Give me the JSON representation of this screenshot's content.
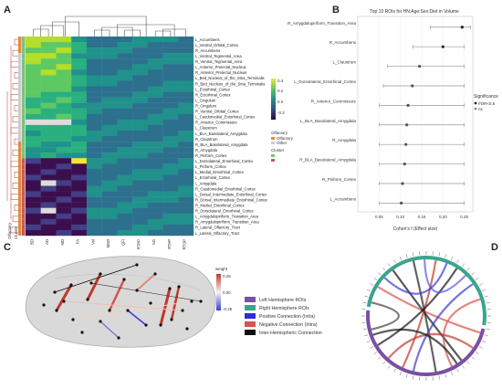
{
  "panels": {
    "a": "A",
    "b": "B",
    "c": "C",
    "d": "D"
  },
  "heatmap": {
    "rows": [
      "L_Accumbens",
      "L_Ventral_Orbital_Cortex",
      "R_Accumbens",
      "L_Ventral_Tegmental_Area",
      "R_Ventral_Tegmental_Area",
      "L_Anterior_Pretectal_Nucleus",
      "R_Anterior_Pretectal_Nucleus",
      "L_Bed_Nucleus_of_the_Stria_Terminalis",
      "R_Bed_Nucleus_of_the_Stria_Terminalis",
      "L_Ectorhinal_Cortex",
      "R_Ectorhinal_Cortex",
      "L_Cingulum",
      "R_Cingulum",
      "R_Ventral_Orbital_Cortex",
      "L_Caudomedial_Entorhinal_Cortex",
      "R_Anterior_Commissure",
      "L_Claustrum",
      "L_BLA_Basolateral_Amygdala",
      "R_Claustrum",
      "R_BLA_Basolateral_Amygdala",
      "R_Amygdala",
      "R_Piriform_Cortex",
      "L_Dorsolateral_Entorhinal_Cortex",
      "L_Piriform_Cortex",
      "L_Medial_Entorhinal_Cortex",
      "L_Ectorhinal_Cortex",
      "L_Amygdala",
      "R_Caudomedial_Entorhinal_Cortex",
      "L_Dorsal_Intermediate_Entorhinal_Cortex",
      "R_Dorsal_Intermediate_Entorhinal_Cortex",
      "R_Medial_Entorhinal_Cortex",
      "R_Dorsolateral_Entorhinal_Cortex",
      "L_Amygdalopiriform_Transition_Area",
      "R_Amygdalopiriform_Transition_Area",
      "R_Lateral_Olfactory_Tract",
      "L_Lateral_Olfactory_Tract"
    ],
    "cols": [
      "BD",
      "AD",
      "MD",
      "FA",
      "Vol",
      "MSD",
      "QFI",
      "RTPP",
      "NG",
      "RTAP",
      "RTOP"
    ],
    "side_labels": [
      "Olfactory",
      "Cluster"
    ],
    "colorbar_ticks": [
      "0.4",
      "0.2",
      "0.0",
      "-0.2"
    ],
    "legend1_title": "Olfactory",
    "legend1_items": [
      "Olfactory",
      "Other"
    ],
    "legend2_title": "Cluster"
  },
  "forest": {
    "title": "Top 10 ROIs for HN:Age:Sex:Diet in Volume",
    "xlabel": "Cohen's f (Effect size)",
    "legend_title": "Significance",
    "legend_items": [
      "FDR<0.5",
      "ns"
    ]
  },
  "brain": {
    "legend_title": "weight",
    "colorbar_ticks": [
      "0.25",
      "0.00",
      "-0.25"
    ],
    "legend_items": [
      {
        "label": "Left Hemisphere ROIs",
        "color": "#7b4fa3"
      },
      {
        "label": "Right Hemisphere ROIs",
        "color": "#3aa58c"
      },
      {
        "label": "Positive Connection (Intra)",
        "color": "#2c2cd8"
      },
      {
        "label": "Negative Connection (Intra)",
        "color": "#d9534f"
      },
      {
        "label": "Inter-Hemispheric Connection",
        "color": "#111111"
      }
    ]
  },
  "chart_data": [
    {
      "type": "heatmap",
      "title": "",
      "color_range": [
        -0.3,
        0.5
      ],
      "rows_ref": "heatmap.rows",
      "cols_ref": "heatmap.cols"
    },
    {
      "type": "scatter",
      "title": "Top 10 ROIs for HN:Age:Sex:Diet in Volume",
      "xlabel": "Cohen's f (Effect size)",
      "xlim": [
        0.0,
        0.27
      ],
      "xticks": [
        0.05,
        0.1,
        0.15,
        0.2,
        0.25
      ],
      "categories": [
        "R_Amygdalopiriform_Transition_Area",
        "R_Accumbens",
        "L_Claustrum",
        "L_Dorsolateral_Entorhinal_Cortex",
        "R_Anterior_Commissure",
        "L_BLA_Basolateral_Amygdala",
        "R_Amygdala",
        "R_BLA_Basolateral_Amygdala",
        "R_Piriform_Cortex",
        "L_Accumbens"
      ],
      "values": [
        0.245,
        0.2,
        0.145,
        0.128,
        0.118,
        0.115,
        0.113,
        0.11,
        0.105,
        0.102
      ],
      "ci_low": [
        0.17,
        0.13,
        0.07,
        0.06,
        0.05,
        0.05,
        0.05,
        0.05,
        0.05,
        0.05
      ],
      "ci_high": [
        0.265,
        0.25,
        0.25,
        0.25,
        0.25,
        0.25,
        0.25,
        0.25,
        0.25,
        0.25
      ],
      "significant": [
        true,
        true,
        false,
        false,
        false,
        false,
        false,
        false,
        false,
        false
      ]
    }
  ]
}
